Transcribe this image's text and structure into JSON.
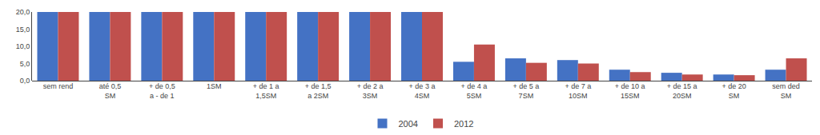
{
  "chart_data": {
    "type": "bar",
    "categories": [
      "sem rend",
      "até 0,5\nSM",
      "+ de 0,5\na - de 1",
      "1SM",
      "+ de 1 a\n1,5SM",
      "+ de 1,5\na 2SM",
      "+ de 2 a\n3SM",
      "+ de 3 a\n4SM",
      "+ de 4 a\n5SM",
      "+ de 5 a\n7SM",
      "+ de 7 a\n10SM",
      "+ de 10 a\n15SM",
      "+ de 15 a\n20SM",
      "+ de 20\nSM",
      "sem ded\nSM"
    ],
    "series": [
      {
        "name": "2004",
        "color": "#4472C4",
        "values": [
          20.0,
          20.0,
          20.0,
          20.0,
          20.0,
          20.0,
          20.0,
          20.0,
          5.5,
          6.5,
          6.0,
          3.2,
          2.3,
          1.8,
          3.2
        ]
      },
      {
        "name": "2012",
        "color": "#C0504D",
        "values": [
          20.0,
          20.0,
          20.0,
          20.0,
          20.0,
          20.0,
          20.0,
          20.0,
          10.5,
          5.2,
          5.0,
          2.5,
          1.8,
          1.6,
          6.5
        ]
      }
    ],
    "ylim": [
      0,
      20
    ],
    "yticks": [
      {
        "value": 0,
        "label": "0,0"
      },
      {
        "value": 5,
        "label": "5,0"
      },
      {
        "value": 10,
        "label": "10,0"
      },
      {
        "value": 15,
        "label": "15,0"
      },
      {
        "value": 20,
        "label": "20,0"
      }
    ],
    "grid": false,
    "legend": "bottom"
  }
}
